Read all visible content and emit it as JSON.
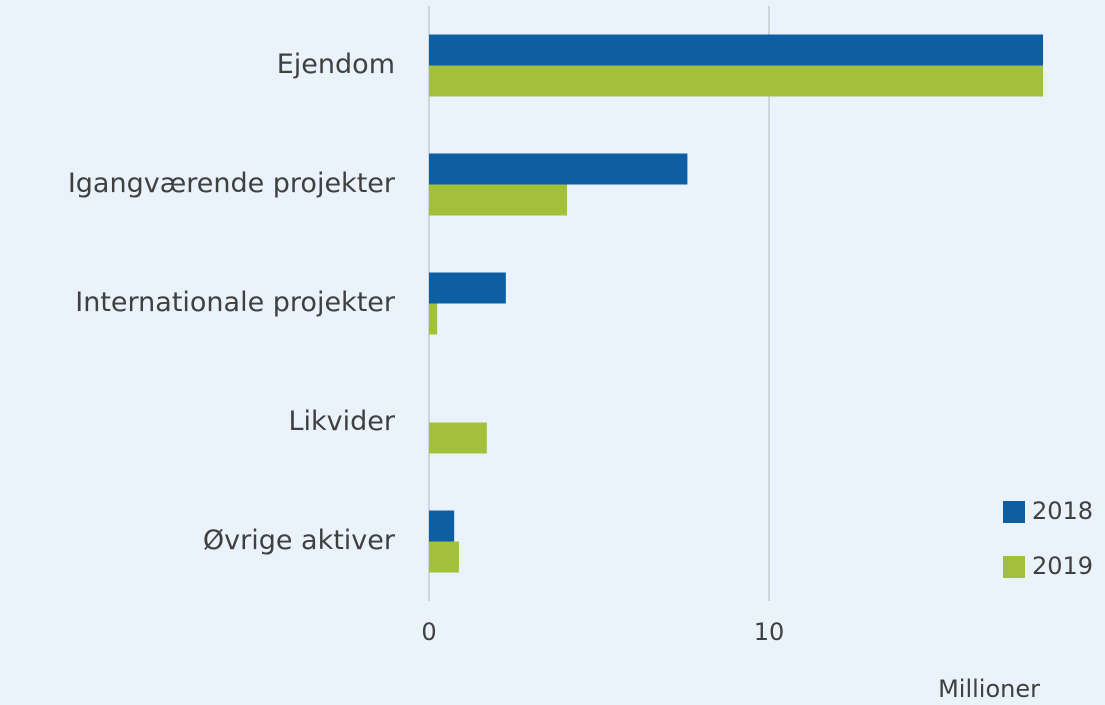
{
  "chart_data": {
    "type": "hbar",
    "categories": [
      "Ejendom",
      "Igangværende projekter",
      "Internationale projekter",
      "Likvider",
      "Øvrige aktiver"
    ],
    "series": [
      {
        "name": "2018",
        "color": "#0e5ea4",
        "values": [
          18.06,
          7.6,
          2.26,
          0,
          0.74
        ]
      },
      {
        "name": "2019",
        "color": "#a3c03a",
        "values": [
          18.06,
          4.06,
          0.24,
          1.7,
          0.88
        ]
      }
    ],
    "xlim": [
      0,
      19
    ],
    "xticks": [
      0,
      10
    ],
    "x_unit_label": "Millioner",
    "grid": true,
    "legend": "lower right"
  }
}
